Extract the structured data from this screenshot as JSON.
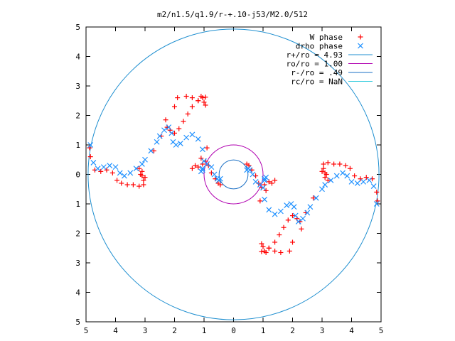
{
  "chart_data": {
    "type": "scatter",
    "title": "m2/n1.5/q1.9/r-+.10-j53/M2.0/512",
    "xlabel": "",
    "ylabel": "",
    "xlim": [
      -5,
      5
    ],
    "ylim": [
      -5,
      5
    ],
    "x_ticks": [
      -5,
      -4,
      -3,
      -2,
      -1,
      0,
      1,
      2,
      3,
      4,
      5
    ],
    "x_tick_labels": [
      "5",
      "4",
      "3",
      "2",
      "1",
      "0",
      "1",
      "2",
      "3",
      "4",
      "5"
    ],
    "y_ticks": [
      5,
      4,
      3,
      2,
      1,
      0,
      -1,
      -2,
      -3,
      -4,
      -5
    ],
    "y_tick_labels": [
      "5",
      "4",
      "3",
      "2",
      "1",
      "0",
      "1",
      "2",
      "3",
      "4",
      "5"
    ],
    "grid": false,
    "legend_position": "top-right",
    "series": [
      {
        "name": "W phase",
        "kind": "points",
        "marker": "plus",
        "color": "#ff0000",
        "x": [
          -4.88,
          -4.85,
          -4.7,
          -4.5,
          -4.3,
          -4.1,
          -3.95,
          -3.8,
          -3.6,
          -3.4,
          -3.2,
          -3.05,
          -3.0,
          -3.1,
          -3.2,
          -3.15,
          -3.1,
          -3.05,
          -2.7,
          -2.45,
          -2.25,
          -2.15,
          -2.0,
          -1.85,
          -1.7,
          -1.55,
          -1.4,
          -1.2,
          -1.05,
          -0.95,
          -1.1,
          -2.0,
          -2.3,
          -1.9,
          -1.6,
          -1.4,
          -1.2,
          -1.0,
          -0.95,
          -0.9,
          -1.1,
          -1.3,
          -1.4,
          -1.2,
          -1.05,
          -0.95,
          -0.85,
          -0.75,
          -0.62,
          -0.52,
          -0.45,
          0.45,
          0.52,
          0.62,
          0.75,
          0.85,
          0.95,
          1.05,
          1.2,
          1.4,
          1.3,
          1.1,
          0.9,
          0.95,
          1.0,
          1.2,
          1.4,
          1.6,
          1.9,
          2.3,
          2.0,
          1.1,
          0.95,
          1.05,
          1.2,
          1.4,
          1.55,
          1.7,
          1.85,
          2.0,
          2.15,
          2.25,
          2.45,
          2.7,
          3.05,
          3.1,
          3.15,
          3.2,
          3.1,
          3.0,
          3.05,
          3.2,
          3.4,
          3.6,
          3.8,
          3.95,
          4.1,
          4.3,
          4.5,
          4.7,
          4.85,
          4.88
        ],
        "y": [
          0.9,
          0.6,
          0.15,
          0.1,
          0.15,
          0.05,
          -0.2,
          -0.3,
          -0.35,
          -0.35,
          -0.4,
          -0.35,
          -0.1,
          0.1,
          0.2,
          0.0,
          -0.05,
          -0.2,
          0.8,
          1.3,
          1.6,
          1.5,
          1.4,
          1.55,
          1.8,
          2.05,
          2.3,
          2.5,
          2.6,
          2.62,
          2.65,
          2.3,
          1.85,
          2.6,
          2.65,
          2.6,
          2.5,
          2.45,
          2.35,
          0.9,
          0.55,
          0.3,
          0.2,
          0.25,
          0.35,
          0.45,
          0.3,
          0.05,
          -0.15,
          -0.3,
          -0.35,
          0.35,
          0.3,
          0.15,
          -0.05,
          -0.3,
          -0.45,
          -0.35,
          -0.25,
          -0.2,
          -0.3,
          -0.55,
          -0.9,
          -2.35,
          -2.45,
          -2.5,
          -2.6,
          -2.65,
          -2.6,
          -1.85,
          -2.3,
          -2.65,
          -2.62,
          -2.6,
          -2.5,
          -2.3,
          -2.05,
          -1.8,
          -1.55,
          -1.4,
          -1.5,
          -1.6,
          -1.3,
          -0.8,
          0.2,
          0.05,
          0.0,
          -0.2,
          -0.1,
          0.1,
          0.35,
          0.4,
          0.35,
          0.35,
          0.3,
          0.2,
          -0.05,
          -0.15,
          -0.1,
          -0.15,
          -0.6,
          -0.9
        ]
      },
      {
        "name": "drho phase",
        "kind": "points",
        "marker": "cross",
        "color": "#1e90ff",
        "x": [
          -4.85,
          -4.75,
          -4.6,
          -4.4,
          -4.2,
          -4.0,
          -3.85,
          -3.7,
          -3.5,
          -3.3,
          -3.1,
          -3.0,
          -2.8,
          -2.6,
          -2.5,
          -2.35,
          -2.2,
          -2.1,
          -2.05,
          -1.95,
          -1.8,
          -1.6,
          -1.4,
          -1.2,
          -1.05,
          -1.0,
          -1.05,
          -1.1,
          -1.05,
          -0.9,
          -0.75,
          -0.65,
          -0.55,
          -0.5,
          -0.45,
          0.45,
          0.5,
          0.55,
          0.65,
          0.75,
          0.9,
          1.05,
          1.1,
          1.05,
          1.0,
          1.05,
          1.2,
          1.4,
          1.6,
          1.8,
          1.95,
          2.05,
          2.1,
          2.2,
          2.35,
          2.5,
          2.6,
          2.8,
          3.0,
          3.1,
          3.3,
          3.5,
          3.7,
          3.85,
          4.0,
          4.2,
          4.4,
          4.6,
          4.75,
          4.85
        ],
        "y": [
          1.0,
          0.4,
          0.2,
          0.25,
          0.3,
          0.25,
          0.05,
          -0.05,
          0.05,
          0.2,
          0.35,
          0.5,
          0.8,
          1.1,
          1.3,
          1.5,
          1.6,
          1.4,
          1.1,
          1.0,
          1.05,
          1.25,
          1.35,
          1.2,
          0.85,
          0.45,
          0.2,
          0.1,
          0.15,
          0.35,
          0.25,
          0.0,
          -0.15,
          -0.2,
          -0.15,
          0.15,
          0.2,
          0.15,
          0.0,
          -0.25,
          -0.35,
          -0.15,
          -0.1,
          -0.2,
          -0.45,
          -0.85,
          -1.2,
          -1.35,
          -1.25,
          -1.05,
          -1.0,
          -1.1,
          -1.4,
          -1.6,
          -1.5,
          -1.3,
          -1.1,
          -0.8,
          -0.5,
          -0.35,
          -0.2,
          -0.05,
          0.05,
          -0.05,
          -0.25,
          -0.3,
          -0.25,
          -0.2,
          -0.4,
          -1.0
        ]
      },
      {
        "name": "r+/ro = 4.93",
        "kind": "circle",
        "radius": 4.93,
        "color": "#1f8fd0"
      },
      {
        "name": "ro/ro = 1.00",
        "kind": "circle",
        "radius": 1.0,
        "color": "#b000b0"
      },
      {
        "name": "r-/ro = .49",
        "kind": "circle",
        "radius": 0.49,
        "color": "#1a6fc4"
      },
      {
        "name": "rc/ro = NaN",
        "kind": "circle",
        "radius": null,
        "color": "#33ccdd"
      }
    ]
  }
}
